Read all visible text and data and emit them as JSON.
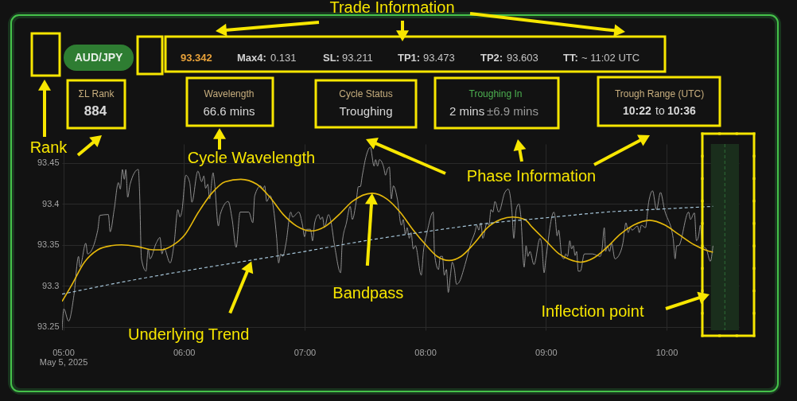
{
  "chart_data": {
    "type": "line",
    "xlim": [
      4.99,
      10.6
    ],
    "ylim": [
      93.246,
      93.473
    ],
    "xticks": [
      {
        "value": 5,
        "label": "05:00"
      },
      {
        "value": 6,
        "label": "06:00"
      },
      {
        "value": 7,
        "label": "07:00"
      },
      {
        "value": 8,
        "label": "08:00"
      },
      {
        "value": 9,
        "label": "09:00"
      },
      {
        "value": 10,
        "label": "10:00"
      }
    ],
    "yticks": [
      93.25,
      93.3,
      93.35,
      93.4,
      93.45
    ],
    "grid": true,
    "series": [
      {
        "color": "#8f8f8f",
        "x": [
          4.99,
          5.005,
          5.044,
          5.088,
          5.127,
          5.138,
          5.187,
          5.202,
          5.286,
          5.303,
          5.374,
          5.389,
          5.422,
          5.457,
          5.473,
          5.49,
          5.506,
          5.519,
          5.534,
          5.554,
          5.622,
          5.633,
          5.648,
          5.686,
          5.704,
          5.719,
          5.77,
          5.802,
          5.818,
          5.835,
          5.886,
          5.919,
          5.95,
          5.967,
          5.982,
          6.017,
          6.048,
          6.066,
          6.116,
          6.147,
          6.165,
          6.18,
          6.198,
          6.213,
          6.242,
          6.253,
          6.286,
          6.301,
          6.367,
          6.4,
          6.433,
          6.466,
          6.538,
          6.571,
          6.587,
          6.637,
          6.653,
          6.67,
          6.686,
          6.714,
          6.769,
          6.785,
          6.802,
          6.82,
          6.846,
          6.886,
          6.901,
          6.952,
          6.983,
          7.0,
          7.016,
          7.049,
          7.066,
          7.084,
          7.115,
          7.132,
          7.148,
          7.165,
          7.198,
          7.215,
          7.249,
          7.299,
          7.312,
          7.347,
          7.378,
          7.396,
          7.428,
          7.446,
          7.462,
          7.479,
          7.51,
          7.545,
          7.576,
          7.589,
          7.605,
          7.62,
          7.655,
          7.671,
          7.686,
          7.703,
          7.719,
          7.736,
          7.769,
          7.802,
          7.818,
          7.835,
          7.85,
          7.868,
          7.883,
          7.901,
          7.919,
          7.967,
          7.985,
          8.015,
          8.066,
          8.077,
          8.11,
          8.125,
          8.143,
          8.158,
          8.176,
          8.191,
          8.209,
          8.224,
          8.242,
          8.259,
          8.279,
          8.33,
          8.378,
          8.411,
          8.429,
          8.444,
          8.462,
          8.477,
          8.512,
          8.528,
          8.545,
          8.561,
          8.578,
          8.609,
          8.66,
          8.688,
          8.719,
          8.734,
          8.754,
          8.776,
          8.791,
          8.82,
          8.836,
          8.851,
          8.868,
          8.901,
          8.952,
          8.967,
          8.985,
          9.0,
          9.066,
          9.077,
          9.093,
          9.106,
          9.132,
          9.15,
          9.165,
          9.18,
          9.198,
          9.213,
          9.227,
          9.242,
          9.255,
          9.268,
          9.286,
          9.319,
          9.385,
          9.451,
          9.466,
          9.484,
          9.495,
          9.51,
          9.528,
          9.545,
          9.572,
          9.62,
          9.638,
          9.664,
          9.682,
          9.699,
          9.715,
          9.759,
          9.774,
          9.792,
          9.825,
          9.853,
          9.884,
          9.917,
          9.95,
          9.983,
          10.055,
          10.071,
          10.084,
          10.099,
          10.183,
          10.198,
          10.231,
          10.248,
          10.266,
          10.28,
          10.297,
          10.33,
          10.363,
          10.385
        ],
        "values": [
          93.246,
          93.272,
          93.257,
          93.288,
          93.336,
          93.323,
          93.352,
          93.339,
          93.368,
          93.386,
          93.387,
          93.366,
          93.393,
          93.426,
          93.418,
          93.442,
          93.43,
          93.442,
          93.408,
          93.424,
          93.442,
          93.413,
          93.333,
          93.318,
          93.345,
          93.333,
          93.352,
          93.359,
          93.339,
          93.346,
          93.328,
          93.352,
          93.393,
          93.384,
          93.39,
          93.435,
          93.426,
          93.402,
          93.44,
          93.427,
          93.434,
          93.419,
          93.424,
          93.406,
          93.438,
          93.427,
          93.373,
          93.387,
          93.403,
          93.381,
          93.347,
          93.39,
          93.39,
          93.377,
          93.41,
          93.422,
          93.418,
          93.422,
          93.403,
          93.41,
          93.358,
          93.328,
          93.339,
          93.336,
          93.352,
          93.39,
          93.384,
          93.39,
          93.374,
          93.36,
          93.369,
          93.369,
          93.355,
          93.377,
          93.387,
          93.381,
          93.384,
          93.371,
          93.387,
          93.381,
          93.349,
          93.316,
          93.352,
          93.377,
          93.397,
          93.381,
          93.403,
          93.421,
          93.421,
          93.435,
          93.458,
          93.469,
          93.446,
          93.454,
          93.446,
          93.454,
          93.445,
          93.435,
          93.442,
          93.445,
          93.406,
          93.422,
          93.406,
          93.374,
          93.381,
          93.363,
          93.371,
          93.358,
          93.365,
          93.345,
          93.349,
          93.313,
          93.342,
          93.365,
          93.39,
          93.339,
          93.32,
          93.336,
          93.336,
          93.313,
          93.32,
          93.292,
          93.313,
          93.329,
          93.32,
          93.302,
          93.304,
          93.326,
          93.352,
          93.365,
          93.374,
          93.368,
          93.377,
          93.358,
          93.377,
          93.374,
          93.393,
          93.39,
          93.403,
          93.39,
          93.414,
          93.418,
          93.39,
          93.358,
          93.393,
          93.4,
          93.387,
          93.323,
          93.349,
          93.336,
          93.342,
          93.326,
          93.358,
          93.349,
          93.316,
          93.333,
          93.39,
          93.384,
          93.361,
          93.368,
          93.336,
          93.333,
          93.339,
          93.336,
          93.355,
          93.345,
          93.349,
          93.337,
          93.342,
          93.318,
          93.318,
          93.339,
          93.339,
          93.336,
          93.345,
          93.371,
          93.342,
          93.349,
          93.342,
          93.352,
          93.333,
          93.342,
          93.352,
          93.377,
          93.365,
          93.371,
          93.368,
          93.373,
          93.365,
          93.374,
          93.371,
          93.403,
          93.416,
          93.393,
          93.414,
          93.393,
          93.358,
          93.333,
          93.349,
          93.349,
          93.39,
          93.381,
          93.389,
          93.355,
          93.361,
          93.374,
          93.349,
          93.345,
          93.33,
          93.349
        ]
      },
      {
        "color": "#e5b80b",
        "x": [
          4.99,
          5.066,
          5.176,
          5.286,
          5.396,
          5.483,
          5.615,
          5.747,
          5.813,
          5.901,
          6.011,
          6.121,
          6.231,
          6.341,
          6.472,
          6.604,
          6.714,
          6.824,
          6.934,
          7.055,
          7.176,
          7.286,
          7.396,
          7.56,
          7.682,
          7.791,
          7.901,
          8.011,
          8.099,
          8.198,
          8.297,
          8.407,
          8.516,
          8.626,
          8.725,
          8.824,
          8.89,
          9.0,
          9.11,
          9.198,
          9.286,
          9.396,
          9.506,
          9.616,
          9.726,
          9.858,
          9.989,
          10.099,
          10.231,
          10.319,
          10.385
        ],
        "values": [
          93.281,
          93.3,
          93.329,
          93.344,
          93.349,
          93.35,
          93.348,
          93.344,
          93.344,
          93.349,
          93.363,
          93.39,
          93.413,
          93.427,
          93.43,
          93.424,
          93.408,
          93.387,
          93.373,
          93.367,
          93.373,
          93.387,
          93.403,
          93.413,
          93.406,
          93.39,
          93.368,
          93.349,
          93.336,
          93.331,
          93.336,
          93.352,
          93.371,
          93.381,
          93.384,
          93.381,
          93.371,
          93.355,
          93.339,
          93.332,
          93.329,
          93.334,
          93.347,
          93.363,
          93.374,
          93.38,
          93.374,
          93.363,
          93.35,
          93.344,
          93.341
        ]
      },
      {
        "color": "#a8c8dc",
        "line_style": "dashed",
        "x": [
          4.99,
          5.5,
          6.0,
          6.5,
          7.0,
          7.5,
          8.0,
          8.5,
          9.0,
          9.5,
          10.0,
          10.385
        ],
        "values": [
          93.29,
          93.305,
          93.318,
          93.33,
          93.342,
          93.355,
          93.366,
          93.376,
          93.383,
          93.39,
          93.394,
          93.397
        ]
      }
    ],
    "bands": [
      {
        "axis": "x",
        "from": 10.367,
        "to": 10.6,
        "color": "#1a2e1c"
      }
    ],
    "ref_lines": [
      {
        "axis": "x",
        "value": 10.483,
        "color": "#2f6e37",
        "line_style": "dashed"
      }
    ],
    "annotations": [
      "Trade Information",
      "Rank",
      "Cycle Wavelength",
      "Phase Information",
      {
        "text": "Bandpass",
        "x": 7.56,
        "y": 93.413
      },
      {
        "text": "Underlying Trend",
        "x": 6.56,
        "y": 93.33
      },
      "Inflection point",
      "AUD/JPY",
      "93.342",
      "Max4:",
      "0.131",
      "SL:",
      "93.211",
      "TP1:",
      "93.473",
      "TP2:",
      "93.603",
      "TT:",
      "~ 11:02 UTC",
      "ΣL Rank",
      "884",
      "Wavelength",
      "66.6 mins",
      "Cycle Status",
      "Troughing",
      "Troughing In",
      "2 mins",
      "±6.9 mins",
      "Trough Range (UTC)",
      "10:22",
      "to",
      "10:36",
      "May 5, 2025"
    ]
  }
}
